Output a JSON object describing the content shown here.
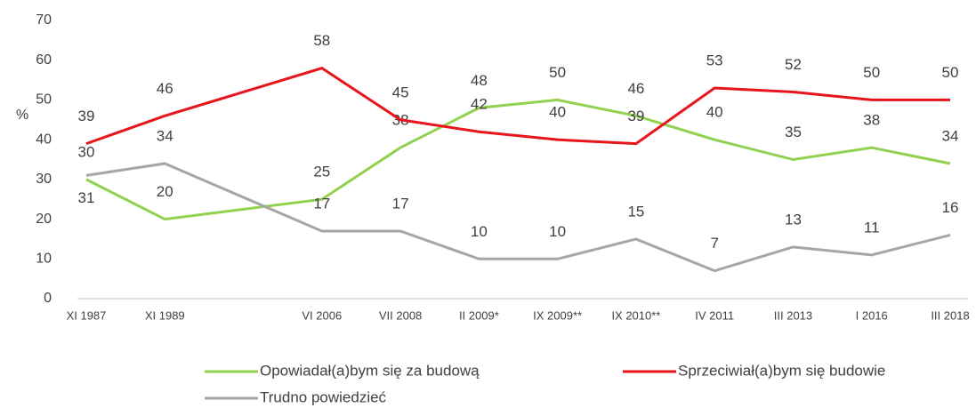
{
  "chart_data": {
    "type": "line",
    "y_label": "%",
    "categories": [
      "XI 1987",
      "XI 1989",
      "VI 2006",
      "VII 2008",
      "II 2009*",
      "IX 2009**",
      "IX 2010**",
      "IV 2011",
      "III 2013",
      "I 2016",
      "III 2018"
    ],
    "series": [
      {
        "name": "Opowiadał(a)bym się za budową",
        "color": "#92d050",
        "values": [
          30,
          20,
          25,
          38,
          48,
          50,
          46,
          40,
          35,
          38,
          34
        ]
      },
      {
        "name": "Sprzeciwiał(a)bym się budowie",
        "color": "#e8141c",
        "values": [
          39,
          46,
          58,
          45,
          42,
          40,
          39,
          53,
          52,
          50,
          50
        ]
      },
      {
        "name": "Trudno powiedzieć",
        "color": "#a6a6a6",
        "values": [
          31,
          34,
          17,
          17,
          10,
          10,
          15,
          7,
          13,
          11,
          16
        ]
      }
    ],
    "ylim": [
      0,
      70
    ],
    "yticks": [
      0,
      10,
      20,
      30,
      40,
      50,
      60,
      70
    ],
    "grid": false
  }
}
